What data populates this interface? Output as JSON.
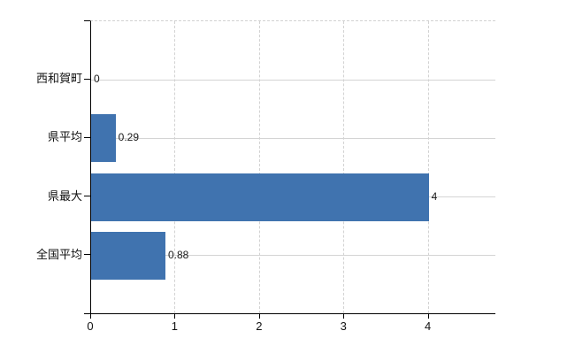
{
  "chart_data": {
    "type": "bar",
    "orientation": "horizontal",
    "title": "",
    "xlabel": "",
    "ylabel": "",
    "categories": [
      "西和賀町",
      "県平均",
      "県最大",
      "全国平均"
    ],
    "values": [
      0,
      0.29,
      4,
      0.88
    ],
    "value_labels": [
      "0",
      "0.29",
      "4",
      "0.88"
    ],
    "xticks": [
      0,
      1,
      2,
      3,
      4
    ],
    "xtick_labels": [
      "0",
      "1",
      "2",
      "3",
      "4"
    ],
    "xlim": [
      0,
      4.8
    ],
    "grid": "on",
    "grid_style": {
      "vertical": "dashed",
      "horizontal": "solid",
      "top_border": "dashed"
    },
    "legend": "none",
    "colors": {
      "bar": "#4073af",
      "grid": "#d2d2d2",
      "axis": "#000000",
      "text": "#111111",
      "background": "#ffffff"
    }
  }
}
